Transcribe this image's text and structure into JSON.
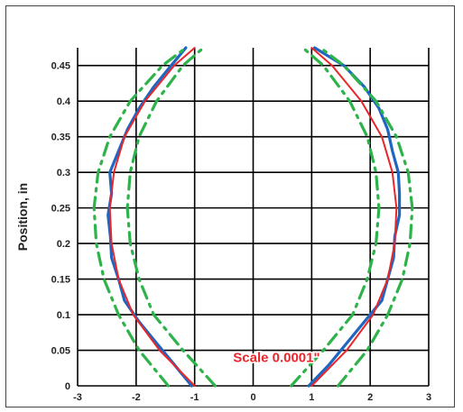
{
  "chart_data": {
    "type": "line",
    "title": "",
    "xlabel": "",
    "ylabel": "Position, in",
    "xlim": [
      -3,
      3
    ],
    "ylim": [
      0,
      0.475
    ],
    "x_ticks": [
      -3,
      -2,
      -1,
      0,
      1,
      2,
      3
    ],
    "y_ticks": [
      0,
      0.05,
      0.1,
      0.15,
      0.2,
      0.25,
      0.3,
      0.35,
      0.4,
      0.45
    ],
    "grid": true,
    "legend": "none",
    "annotation": {
      "text": "Scale 0.0001\"",
      "x": 0.4,
      "y": 0.04,
      "color": "#e8262b"
    },
    "series": [
      {
        "style": "solid",
        "color": "#1f66c1",
        "sides": {
          "left": {
            "y": [
              0,
              0.03,
              0.06,
              0.09,
              0.12,
              0.15,
              0.18,
              0.21,
              0.24,
              0.27,
              0.3,
              0.33,
              0.36,
              0.39,
              0.42,
              0.45,
              0.475
            ],
            "x": [
              -1.05,
              -1.35,
              -1.65,
              -1.95,
              -2.2,
              -2.3,
              -2.42,
              -2.44,
              -2.48,
              -2.42,
              -2.45,
              -2.3,
              -2.15,
              -1.95,
              -1.7,
              -1.4,
              -1.15
            ]
          },
          "right": {
            "y": [
              0,
              0.03,
              0.06,
              0.09,
              0.12,
              0.15,
              0.18,
              0.21,
              0.24,
              0.27,
              0.3,
              0.33,
              0.36,
              0.39,
              0.42,
              0.45,
              0.475
            ],
            "x": [
              0.95,
              1.3,
              1.6,
              1.9,
              2.2,
              2.3,
              2.4,
              2.42,
              2.5,
              2.5,
              2.48,
              2.38,
              2.3,
              2.15,
              1.9,
              1.55,
              1.05
            ]
          }
        }
      },
      {
        "style": "solid",
        "color": "#e8262b",
        "sides": {
          "left": {
            "y": [
              0,
              0.05,
              0.1,
              0.15,
              0.2,
              0.25,
              0.3,
              0.35,
              0.4,
              0.45,
              0.475
            ],
            "x": [
              -1.0,
              -1.6,
              -2.05,
              -2.3,
              -2.42,
              -2.45,
              -2.38,
              -2.2,
              -1.85,
              -1.35,
              -1.0
            ]
          },
          "right": {
            "y": [
              0,
              0.05,
              0.1,
              0.15,
              0.2,
              0.25,
              0.3,
              0.35,
              0.4,
              0.45,
              0.475
            ],
            "x": [
              1.0,
              1.6,
              2.05,
              2.3,
              2.42,
              2.45,
              2.38,
              2.2,
              1.85,
              1.35,
              1.0
            ]
          }
        }
      },
      {
        "style": "dashdot",
        "color": "#2db34a",
        "sides": {
          "left": {
            "y": [
              0,
              0.05,
              0.1,
              0.15,
              0.2,
              0.25,
              0.3,
              0.35,
              0.4,
              0.45,
              0.475
            ],
            "x": [
              -1.45,
              -1.95,
              -2.3,
              -2.55,
              -2.68,
              -2.72,
              -2.65,
              -2.45,
              -2.1,
              -1.55,
              -1.15
            ]
          },
          "right": {
            "y": [
              0,
              0.05,
              0.1,
              0.15,
              0.2,
              0.25,
              0.3,
              0.35,
              0.4,
              0.45,
              0.475
            ],
            "x": [
              1.45,
              1.95,
              2.3,
              2.55,
              2.68,
              2.72,
              2.65,
              2.45,
              2.1,
              1.55,
              1.15
            ]
          }
        }
      },
      {
        "style": "dashdot",
        "color": "#2db34a",
        "sides": {
          "left": {
            "y": [
              0,
              0.05,
              0.1,
              0.15,
              0.2,
              0.25,
              0.3,
              0.35,
              0.4,
              0.45,
              0.475
            ],
            "x": [
              -0.65,
              -1.2,
              -1.7,
              -1.95,
              -2.1,
              -2.15,
              -2.1,
              -1.95,
              -1.65,
              -1.2,
              -0.85
            ]
          },
          "right": {
            "y": [
              0,
              0.05,
              0.1,
              0.15,
              0.2,
              0.25,
              0.3,
              0.35,
              0.4,
              0.45,
              0.475
            ],
            "x": [
              0.65,
              1.2,
              1.7,
              1.95,
              2.1,
              2.15,
              2.1,
              1.95,
              1.65,
              1.2,
              0.85
            ]
          }
        }
      }
    ]
  }
}
